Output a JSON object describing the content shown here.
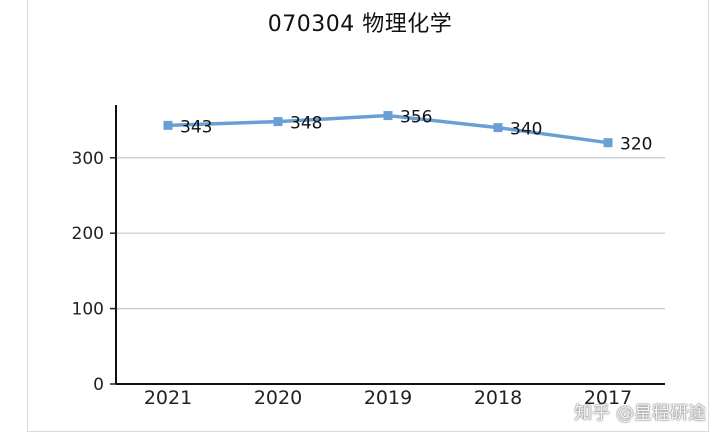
{
  "chart_data": {
    "type": "line",
    "title": "070304  物理化学",
    "categories": [
      "2021",
      "2020",
      "2019",
      "2018",
      "2017"
    ],
    "series": [
      {
        "values": [
          343,
          348,
          356,
          340,
          320
        ]
      }
    ],
    "data_labels": [
      "343",
      "348",
      "356",
      "340",
      "320"
    ],
    "y_ticks": [
      0,
      100,
      200,
      300
    ],
    "ylim": [
      0,
      370
    ],
    "grid": true,
    "line_color": "#6a9fd6"
  },
  "watermark": "知乎 @星程研途"
}
